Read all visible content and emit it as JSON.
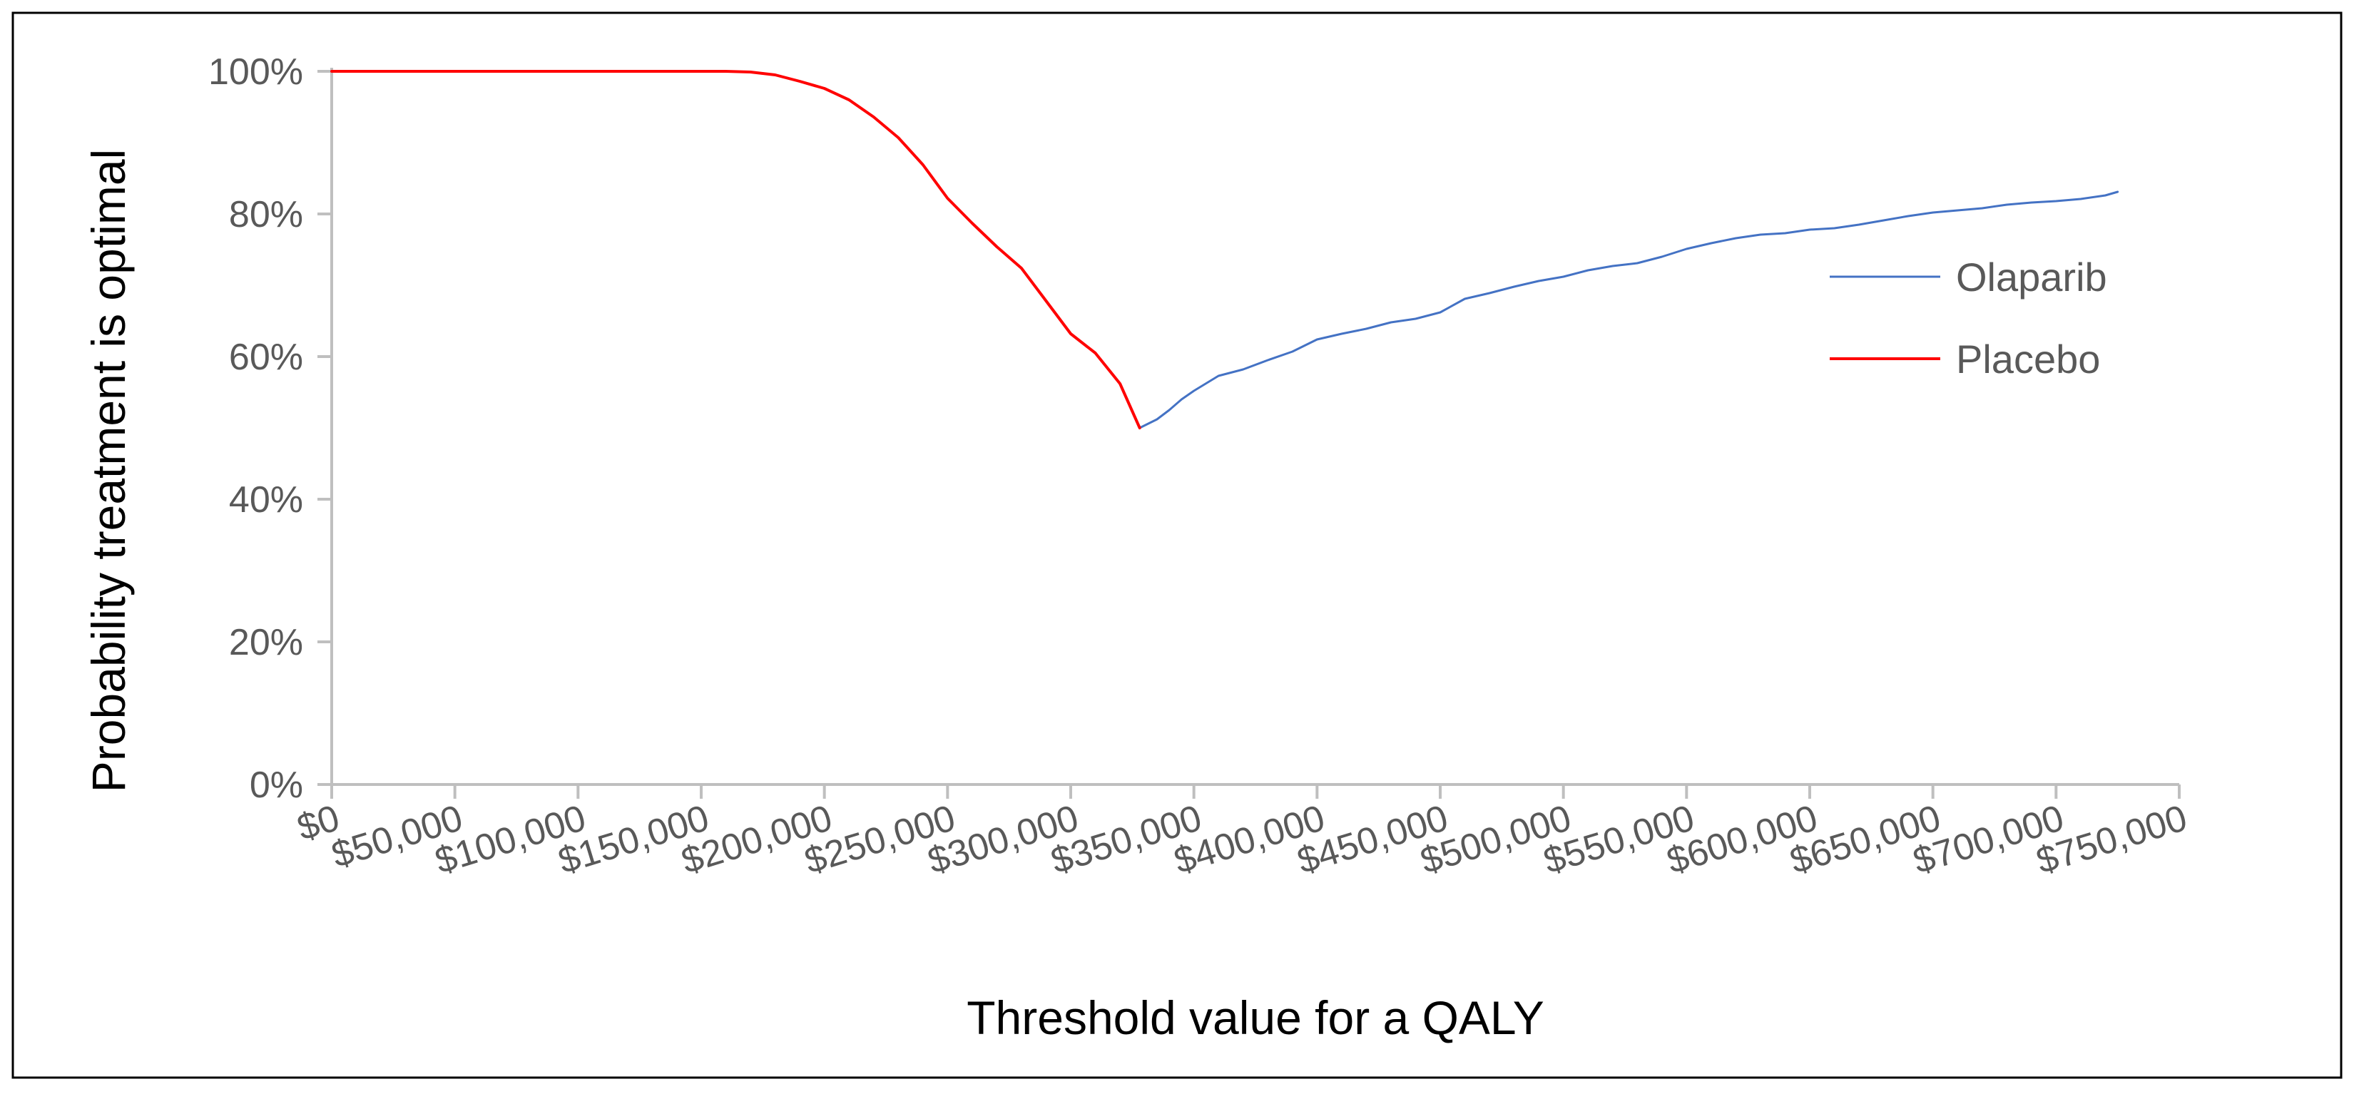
{
  "chart_data": {
    "type": "line",
    "title": "",
    "xlabel": "Threshold value for a QALY",
    "ylabel": "Probability treatment is optimal",
    "xlim": [
      0,
      750000
    ],
    "ylim": [
      0,
      100
    ],
    "x_ticks": [
      0,
      50000,
      100000,
      150000,
      200000,
      250000,
      300000,
      350000,
      400000,
      450000,
      500000,
      550000,
      600000,
      650000,
      700000,
      750000
    ],
    "x_tick_labels": [
      "$0",
      "$50,000",
      "$100,000",
      "$150,000",
      "$200,000",
      "$250,000",
      "$300,000",
      "$350,000",
      "$400,000",
      "$450,000",
      "$500,000",
      "$550,000",
      "$600,000",
      "$650,000",
      "$700,000",
      "$750,000"
    ],
    "y_ticks": [
      0,
      20,
      40,
      60,
      80,
      100
    ],
    "y_tick_labels": [
      "0%",
      "20%",
      "40%",
      "60%",
      "80%",
      "100%"
    ],
    "grid": false,
    "legend_position": "right",
    "series": [
      {
        "name": "Olaparib",
        "color": "#4472C4",
        "x": [
          328000,
          335000,
          340000,
          345000,
          350000,
          360000,
          370000,
          380000,
          390000,
          400000,
          410000,
          420000,
          430000,
          440000,
          450000,
          460000,
          470000,
          480000,
          490000,
          500000,
          510000,
          520000,
          530000,
          540000,
          550000,
          560000,
          570000,
          580000,
          590000,
          600000,
          610000,
          620000,
          630000,
          640000,
          650000,
          660000,
          670000,
          680000,
          690000,
          700000,
          710000,
          720000,
          725000
        ],
        "values": [
          50.0,
          51.2,
          52.5,
          54.0,
          55.2,
          57.3,
          58.2,
          59.5,
          60.7,
          62.4,
          63.2,
          63.9,
          64.8,
          65.3,
          66.2,
          68.1,
          68.9,
          69.8,
          70.6,
          71.2,
          72.1,
          72.7,
          73.1,
          74.0,
          75.1,
          75.9,
          76.6,
          77.1,
          77.3,
          77.8,
          78.0,
          78.5,
          79.1,
          79.7,
          80.2,
          80.5,
          80.8,
          81.3,
          81.6,
          81.8,
          82.1,
          82.6,
          83.1
        ]
      },
      {
        "name": "Placebo",
        "color": "#FF0000",
        "x": [
          0,
          20000,
          40000,
          60000,
          80000,
          100000,
          120000,
          140000,
          160000,
          170000,
          175000,
          180000,
          190000,
          200000,
          210000,
          220000,
          230000,
          240000,
          250000,
          260000,
          270000,
          280000,
          290000,
          300000,
          310000,
          320000,
          328000
        ],
        "values": [
          100,
          100,
          100,
          100,
          100,
          100,
          100,
          100,
          100,
          99.9,
          99.7,
          99.5,
          98.6,
          97.6,
          96.0,
          93.6,
          90.7,
          86.9,
          82.2,
          78.7,
          75.4,
          72.4,
          67.8,
          63.2,
          60.5,
          56.2,
          50.0
        ]
      }
    ]
  }
}
